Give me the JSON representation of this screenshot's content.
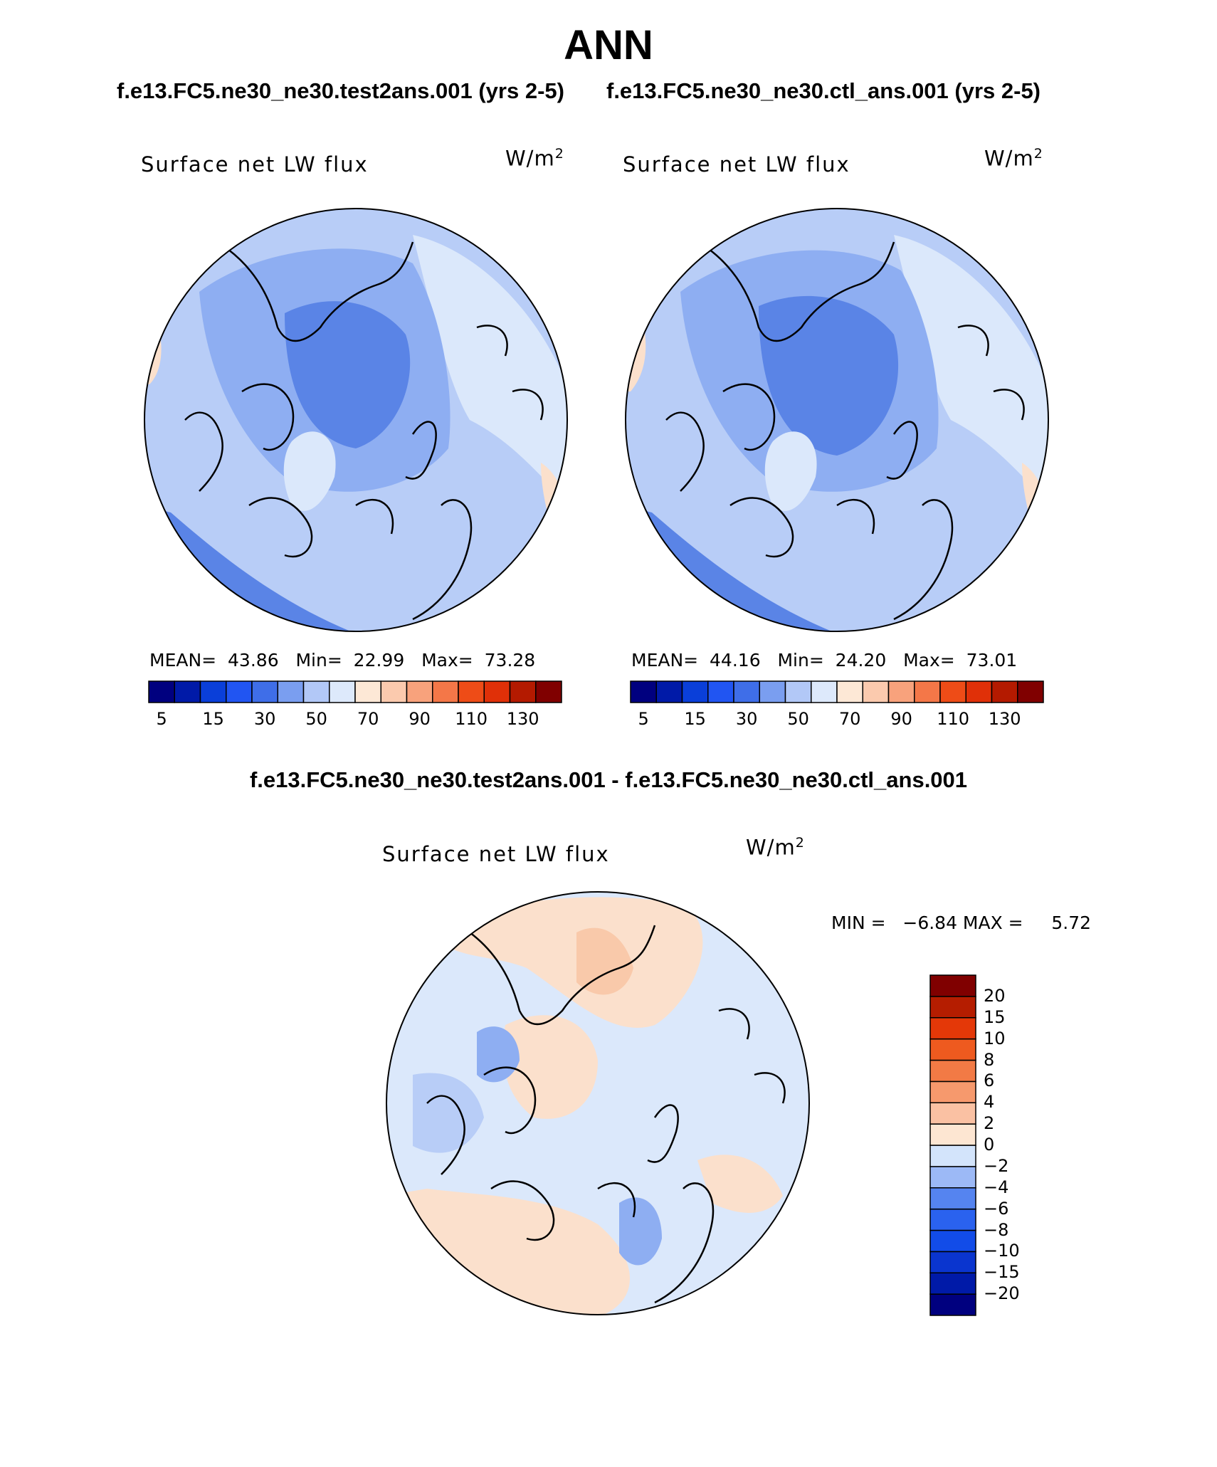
{
  "title": "ANN",
  "panels": [
    {
      "case_title": "f.e13.FC5.ne30_ne30.test2ans.001 (yrs 2-5)",
      "variable": "Surface net LW flux",
      "units_base": "W/m",
      "units_exp": "2",
      "stats": {
        "mean_label": "MEAN=",
        "mean": "43.86",
        "min_label": "Min=",
        "min": "22.99",
        "max_label": "Max=",
        "max": "73.28"
      }
    },
    {
      "case_title": "f.e13.FC5.ne30_ne30.ctl_ans.001 (yrs 2-5)",
      "variable": "Surface net LW flux",
      "units_base": "W/m",
      "units_exp": "2",
      "stats": {
        "mean_label": "MEAN=",
        "mean": "44.16",
        "min_label": "Min=",
        "min": "24.20",
        "max_label": "Max=",
        "max": "73.01"
      }
    }
  ],
  "diff_panel": {
    "title": "f.e13.FC5.ne30_ne30.test2ans.001 - f.e13.FC5.ne30_ne30.ctl_ans.001",
    "variable": "Surface net LW flux",
    "units_base": "W/m",
    "units_exp": "2",
    "stats_text": "MIN =   −6.84 MAX =     5.72"
  },
  "colorbar_horizontal": {
    "colors": [
      "#00007f",
      "#001aa8",
      "#0a3fd9",
      "#2155f2",
      "#3f6ee8",
      "#7a9ef0",
      "#b2c8f7",
      "#dde9fb",
      "#fde8d6",
      "#fbcaae",
      "#f8a27c",
      "#f47748",
      "#ee4c17",
      "#e03008",
      "#b41a00",
      "#800000"
    ],
    "tick_labels": [
      "5",
      "15",
      "30",
      "50",
      "70",
      "90",
      "110",
      "130"
    ]
  },
  "colorbar_vertical": {
    "colors": [
      "#00007f",
      "#001aa8",
      "#0a35cf",
      "#124ce8",
      "#2a62ef",
      "#5584f0",
      "#9cb9f6",
      "#d3e4fb",
      "#fde6d2",
      "#fac1a3",
      "#f6996d",
      "#f27a45",
      "#ee5a1f",
      "#e43808",
      "#b51d00",
      "#800000"
    ],
    "tick_labels": [
      "20",
      "15",
      "10",
      "8",
      "6",
      "4",
      "2",
      "0",
      "−2",
      "−4",
      "−6",
      "−8",
      "−10",
      "−15",
      "−20"
    ]
  },
  "map_colors": {
    "blue_dark": "#5a84e6",
    "blue_mid": "#8eaef2",
    "blue_light": "#b8cdf7",
    "blue_pale": "#dbe8fb",
    "peach": "#fbe0cc",
    "peach_mid": "#f9c9aa"
  }
}
